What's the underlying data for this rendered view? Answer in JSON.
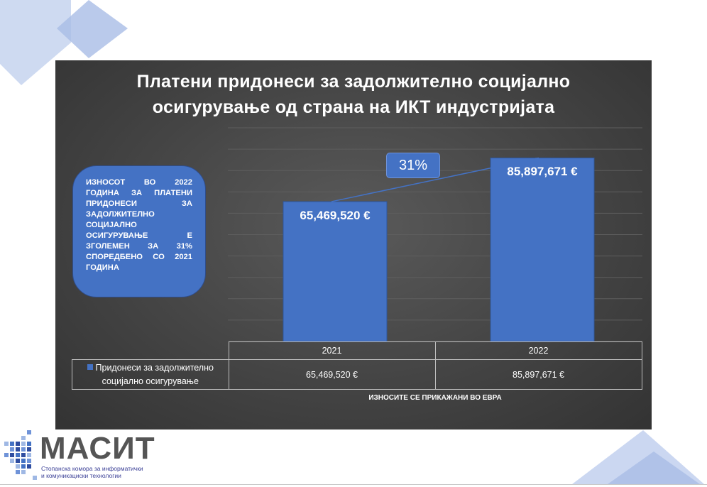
{
  "colors": {
    "bar": "#4472c4",
    "panel": "#404040",
    "decor": "#b4c7e7",
    "logo_gray": "#555555",
    "logo_blue": "#3a3f96"
  },
  "chart_data": {
    "type": "bar",
    "title_lines": [
      "Платени придонеси за задолжително социјално",
      "осигурување од страна на ИКТ индустријата"
    ],
    "categories": [
      "2021",
      "2022"
    ],
    "series": [
      {
        "name": "Придонеси за задолжително социјално осигурување",
        "values": [
          65469520,
          85897671
        ],
        "labels": [
          "65,469,520 €",
          "85,897,671 €"
        ]
      }
    ],
    "ylim": [
      0,
      100000000
    ],
    "grid": true,
    "growth_label": "31%",
    "table_values": [
      "65,469,520 €",
      "85,897,671 €"
    ]
  },
  "note_text": "ИЗНОСОТ ВО 2022 ГОДИНА ЗА ПЛАТЕНИ ПРИДОНЕСИ ЗА ЗАДОЛЖИТЕЛНО СОЦИЈАЛНО ОСИГУРУВАЊЕ Е ЗГОЛЕМЕН ЗА 31% СПОРЕДБЕНО СО 2021 ГОДИНА",
  "footnote": "ИЗНОСИТЕ СЕ ПРИКАЖАНИ ВО ЕВРА",
  "logo": {
    "name": "МАСИТ",
    "subtitle_line1": "Стопанска комора за информатички",
    "subtitle_line2": "и комуникациски технологии"
  }
}
